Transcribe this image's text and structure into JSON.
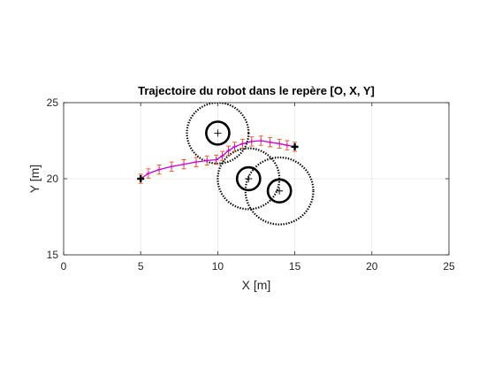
{
  "chart_data": {
    "type": "line",
    "title": "Trajectoire du robot dans le repère [O, X, Y]",
    "xlabel": "X [m]",
    "ylabel": "Y [m]",
    "xlim": [
      0,
      25
    ],
    "ylim": [
      15,
      25
    ],
    "xticks": [
      "0",
      "5",
      "10",
      "15",
      "20",
      "25"
    ],
    "yticks": [
      "15",
      "20",
      "25"
    ],
    "grid": true,
    "colors": {
      "trajectory": "#cc00cc",
      "error_bars": "#e0501e",
      "obstacle": "#000000",
      "influence_zone": "#000000",
      "marker": "#000000",
      "grid": "#e6e6e6",
      "axes": "#262626"
    },
    "start": [
      5,
      20
    ],
    "goal": [
      15,
      22.1
    ],
    "trajectory": {
      "x": [
        5.0,
        5.5,
        6.2,
        7.0,
        7.8,
        8.6,
        9.3,
        9.9,
        10.3,
        10.7,
        11.1,
        11.6,
        12.2,
        12.8,
        13.4,
        14.0,
        14.5,
        15.0
      ],
      "y": [
        20.0,
        20.35,
        20.6,
        20.8,
        20.95,
        21.1,
        21.2,
        21.25,
        21.5,
        21.85,
        22.1,
        22.3,
        22.45,
        22.5,
        22.4,
        22.3,
        22.2,
        22.1
      ],
      "error": 0.3
    },
    "obstacles": [
      {
        "center": [
          10,
          23
        ],
        "radius": 0.75,
        "influence": 2.0
      },
      {
        "center": [
          12,
          20
        ],
        "radius": 0.75,
        "influence": 2.0
      },
      {
        "center": [
          14,
          19.2
        ],
        "radius": 0.75,
        "influence": 2.2
      }
    ]
  }
}
